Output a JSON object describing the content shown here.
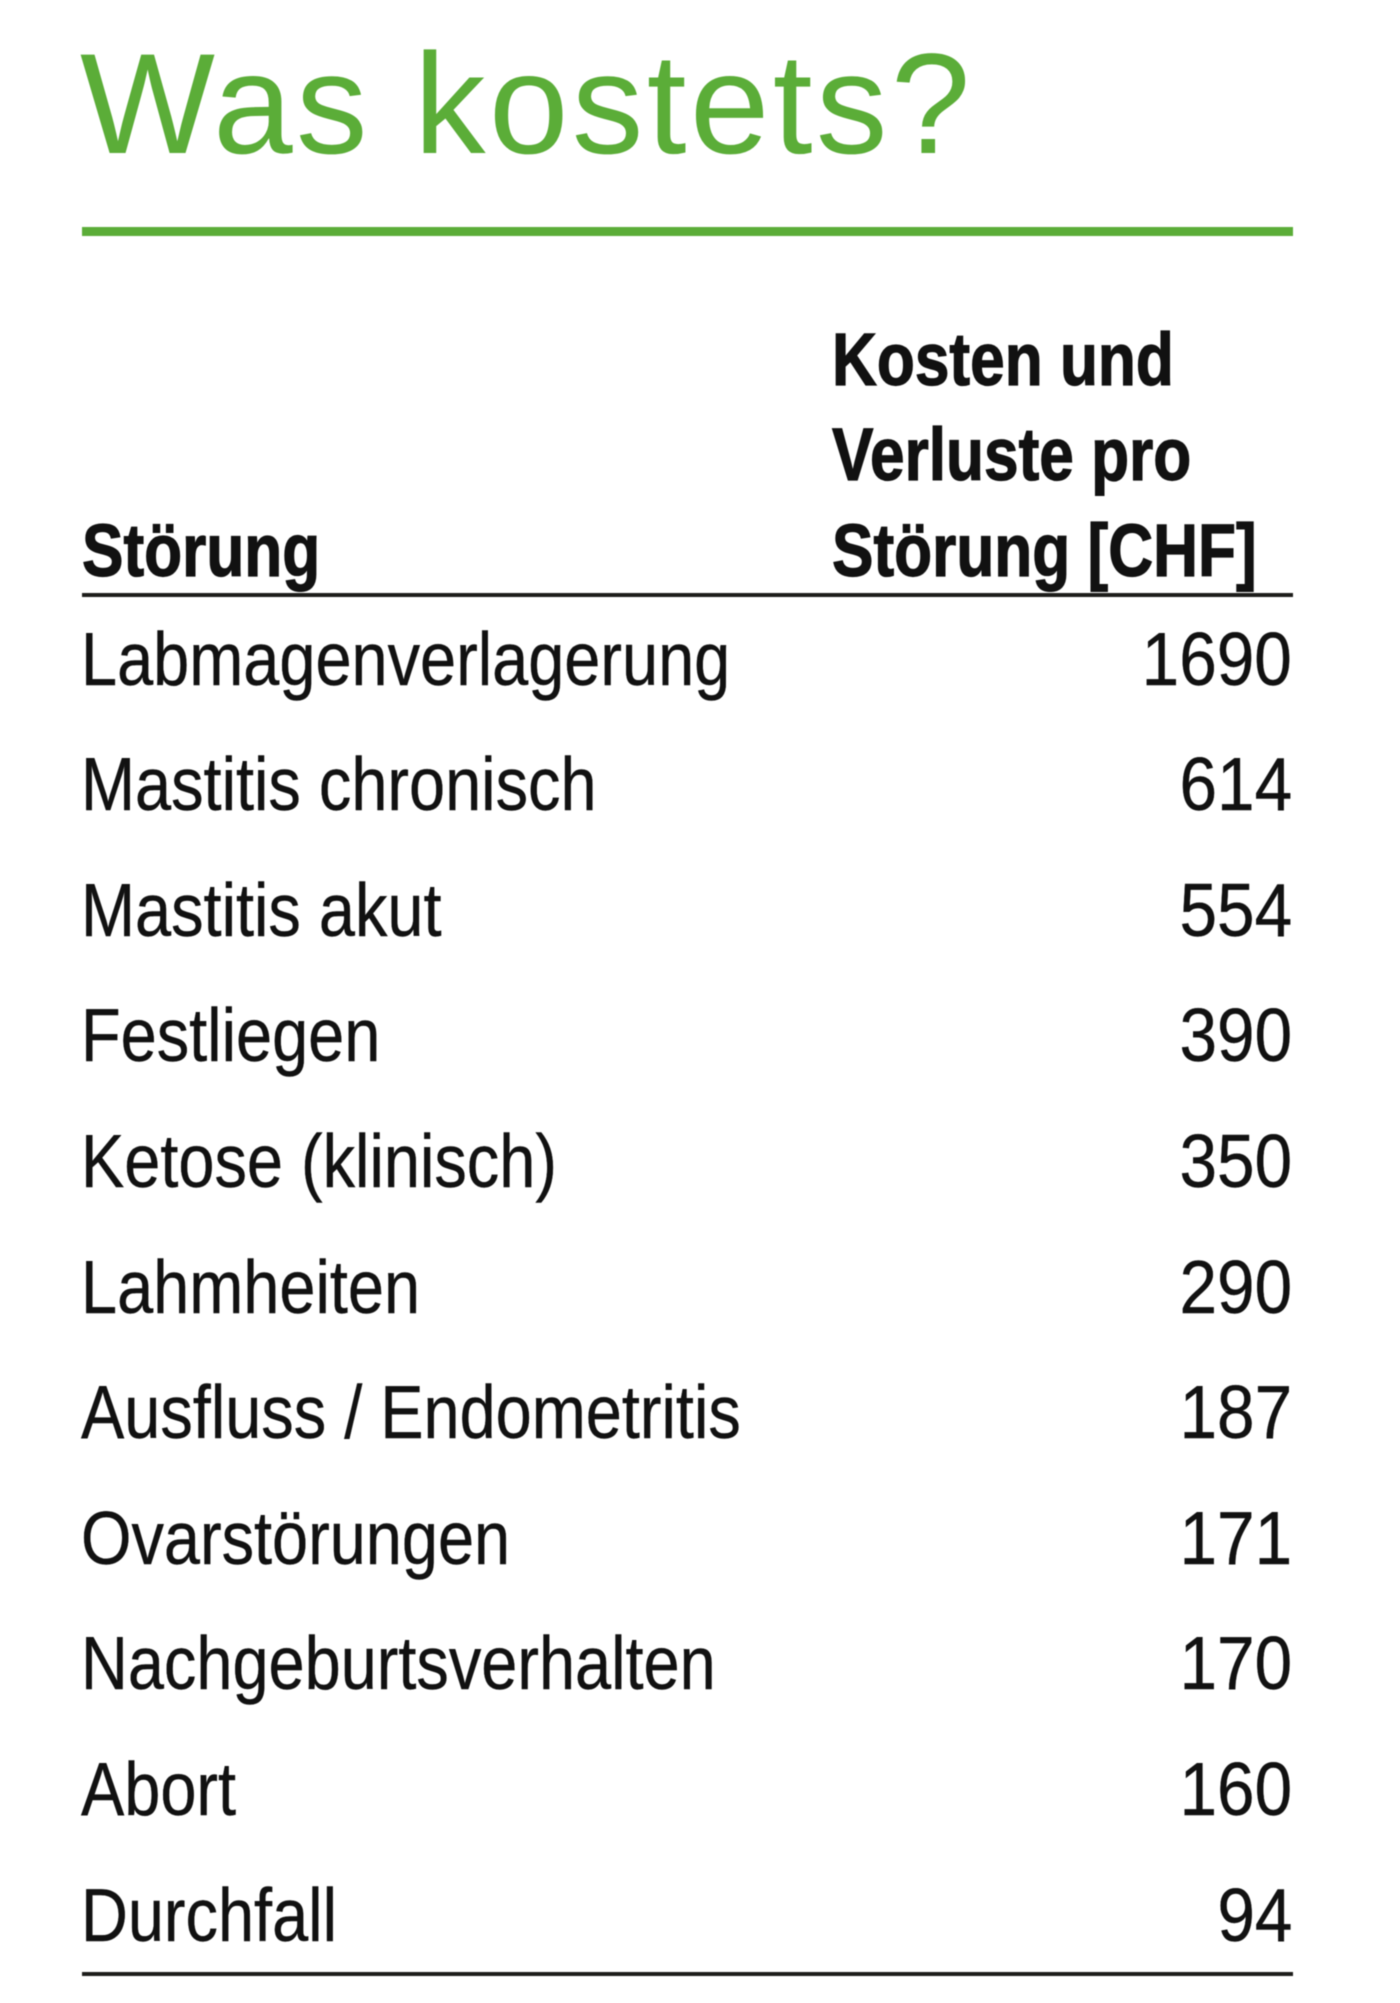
{
  "title": "Was kostets?",
  "accent_color": "#5bad38",
  "text_color": "#111111",
  "table": {
    "col1_header": "Störung",
    "col2_header_lines": [
      "Kosten und",
      "Verluste pro",
      "Störung [CHF]"
    ],
    "rows": [
      {
        "label": "Labmagenverlagerung",
        "value": "1690"
      },
      {
        "label": "Mastitis chronisch",
        "value": "614"
      },
      {
        "label": "Mastitis akut",
        "value": "554"
      },
      {
        "label": "Festliegen",
        "value": "390"
      },
      {
        "label": "Ketose (klinisch)",
        "value": "350"
      },
      {
        "label": "Lahmheiten",
        "value": "290"
      },
      {
        "label": "Ausfluss / Endometritis",
        "value": "187"
      },
      {
        "label": "Ovarstörungen",
        "value": "171"
      },
      {
        "label": "Nachgeburtsverhalten",
        "value": "170"
      },
      {
        "label": "Abort",
        "value": "160"
      },
      {
        "label": "Durchfall",
        "value": "94"
      }
    ]
  },
  "chart_data": {
    "type": "table",
    "title": "Was kostets?",
    "columns": [
      "Störung",
      "Kosten und Verluste pro Störung [CHF]"
    ],
    "categories": [
      "Labmagenverlagerung",
      "Mastitis chronisch",
      "Mastitis akut",
      "Festliegen",
      "Ketose (klinisch)",
      "Lahmheiten",
      "Ausfluss / Endometritis",
      "Ovarstörungen",
      "Nachgeburtsverhalten",
      "Abort",
      "Durchfall"
    ],
    "values": [
      1690,
      614,
      554,
      390,
      350,
      290,
      187,
      171,
      170,
      160,
      94
    ]
  }
}
